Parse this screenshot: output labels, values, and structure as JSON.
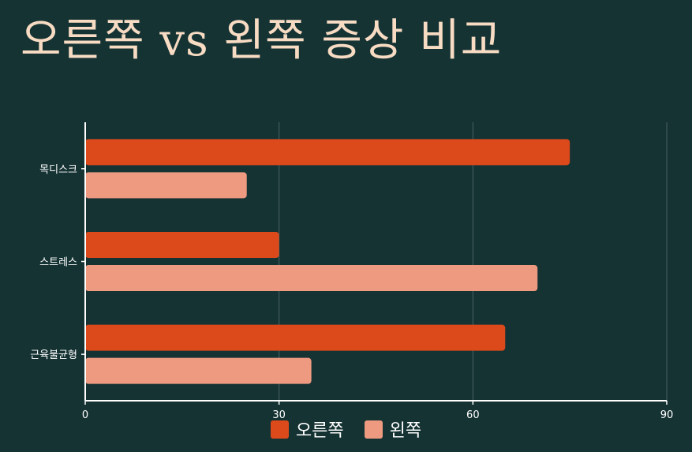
{
  "title": "오른쪽 vs 왼쪽 증상 비교",
  "colors": {
    "background": "#163334",
    "title": "#f7dcc3",
    "axis": "#ffffff",
    "grid": "#4a6262"
  },
  "chart_data": {
    "type": "bar",
    "orientation": "horizontal",
    "categories": [
      "목디스크",
      "스트레스",
      "근육불균형"
    ],
    "series": [
      {
        "name": "오른쪽",
        "values": [
          75,
          30,
          65
        ],
        "color": "#dc4a1c"
      },
      {
        "name": "왼쪽",
        "values": [
          25,
          70,
          35
        ],
        "color": "#ee9a80"
      }
    ],
    "xlim": [
      0,
      90
    ],
    "xticks": [
      0,
      30,
      60,
      90
    ],
    "grid": true,
    "legend": "bottom-center"
  }
}
